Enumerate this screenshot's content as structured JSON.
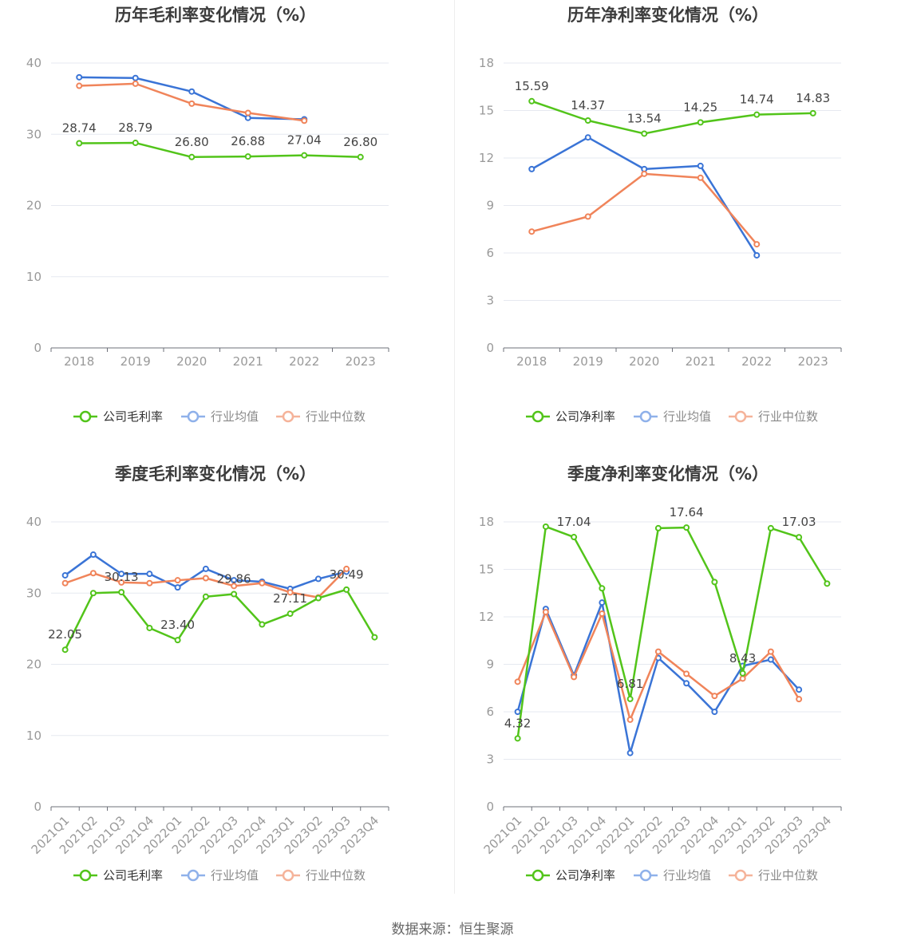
{
  "source": "数据来源：恒生聚源",
  "colors": {
    "company": "#52c41a",
    "avg": "#3a74d6",
    "median": "#f0845a"
  },
  "chart_data": [
    {
      "type": "line",
      "title": "历年毛利率变化情况（%）",
      "categories": [
        "2018",
        "2019",
        "2020",
        "2021",
        "2022",
        "2023"
      ],
      "ylim": [
        0,
        40
      ],
      "yticks": [
        0,
        10,
        20,
        30,
        40
      ],
      "grid": true,
      "legend_position": "bottom",
      "series": [
        {
          "name": "公司毛利率",
          "role": "company",
          "values": [
            28.74,
            28.79,
            26.8,
            26.88,
            27.04,
            26.8
          ],
          "labels": [
            "28.74",
            "28.79",
            "26.80",
            "26.88",
            "27.04",
            "26.80"
          ]
        },
        {
          "name": "行业均值",
          "role": "avg",
          "values": [
            38.0,
            37.9,
            36.0,
            32.3,
            32.1,
            null
          ]
        },
        {
          "name": "行业中位数",
          "role": "median",
          "values": [
            36.8,
            37.1,
            34.3,
            33.0,
            31.9,
            null
          ]
        }
      ]
    },
    {
      "type": "line",
      "title": "历年净利率变化情况（%）",
      "categories": [
        "2018",
        "2019",
        "2020",
        "2021",
        "2022",
        "2023"
      ],
      "ylim": [
        0,
        18
      ],
      "yticks": [
        0,
        3,
        6,
        9,
        12,
        15,
        18
      ],
      "grid": true,
      "legend_position": "bottom",
      "series": [
        {
          "name": "公司净利率",
          "role": "company",
          "values": [
            15.59,
            14.37,
            13.54,
            14.25,
            14.74,
            14.83
          ],
          "labels": [
            "15.59",
            "14.37",
            "13.54",
            "14.25",
            "14.74",
            "14.83"
          ]
        },
        {
          "name": "行业均值",
          "role": "avg",
          "values": [
            11.3,
            13.3,
            11.3,
            11.5,
            5.85,
            null
          ]
        },
        {
          "name": "行业中位数",
          "role": "median",
          "values": [
            7.35,
            8.3,
            11.0,
            10.75,
            6.55,
            null
          ]
        }
      ]
    },
    {
      "type": "line",
      "title": "季度毛利率变化情况（%）",
      "categories": [
        "2021Q1",
        "2021Q2",
        "2021Q3",
        "2021Q4",
        "2022Q1",
        "2022Q2",
        "2022Q3",
        "2022Q4",
        "2023Q1",
        "2023Q2",
        "2023Q3",
        "2023Q4"
      ],
      "ylim": [
        0,
        40
      ],
      "yticks": [
        0,
        10,
        20,
        30,
        40
      ],
      "grid": true,
      "legend_position": "bottom",
      "series": [
        {
          "name": "公司毛利率",
          "role": "company",
          "values": [
            22.05,
            30.0,
            30.13,
            25.1,
            23.4,
            29.5,
            29.86,
            25.6,
            27.11,
            29.3,
            30.49,
            23.8
          ],
          "labels": [
            "22.05",
            "",
            "30.13",
            "",
            "23.40",
            "",
            "29.86",
            "",
            "27.11",
            "",
            "30.49",
            ""
          ]
        },
        {
          "name": "行业均值",
          "role": "avg",
          "values": [
            32.5,
            35.4,
            32.7,
            32.7,
            30.8,
            33.4,
            31.8,
            31.6,
            30.6,
            32.0,
            33.0,
            null
          ]
        },
        {
          "name": "行业中位数",
          "role": "median",
          "values": [
            31.4,
            32.8,
            31.5,
            31.4,
            31.8,
            32.1,
            31.0,
            31.4,
            30.1,
            29.4,
            33.4,
            null
          ]
        }
      ]
    },
    {
      "type": "line",
      "title": "季度净利率变化情况（%）",
      "categories": [
        "2021Q1",
        "2021Q2",
        "2021Q3",
        "2021Q4",
        "2022Q1",
        "2022Q2",
        "2022Q3",
        "2022Q4",
        "2023Q1",
        "2023Q2",
        "2023Q3",
        "2023Q4"
      ],
      "ylim": [
        0,
        18
      ],
      "yticks": [
        0,
        3,
        6,
        9,
        12,
        15,
        18
      ],
      "grid": true,
      "legend_position": "bottom",
      "series": [
        {
          "name": "公司净利率",
          "role": "company",
          "values": [
            4.32,
            17.7,
            17.04,
            13.8,
            6.81,
            17.6,
            17.64,
            14.2,
            8.43,
            17.6,
            17.03,
            14.1
          ],
          "labels": [
            "4.32",
            "",
            "17.04",
            "",
            "6.81",
            "",
            "17.64",
            "",
            "8.43",
            "",
            "17.03",
            ""
          ]
        },
        {
          "name": "行业均值",
          "role": "avg",
          "values": [
            6.0,
            12.5,
            8.3,
            12.9,
            3.4,
            9.4,
            7.8,
            6.0,
            8.9,
            9.3,
            7.4,
            null
          ]
        },
        {
          "name": "行业中位数",
          "role": "median",
          "values": [
            7.9,
            12.3,
            8.2,
            12.2,
            5.5,
            9.8,
            8.4,
            7.0,
            8.1,
            9.8,
            6.8,
            null
          ]
        }
      ]
    }
  ]
}
